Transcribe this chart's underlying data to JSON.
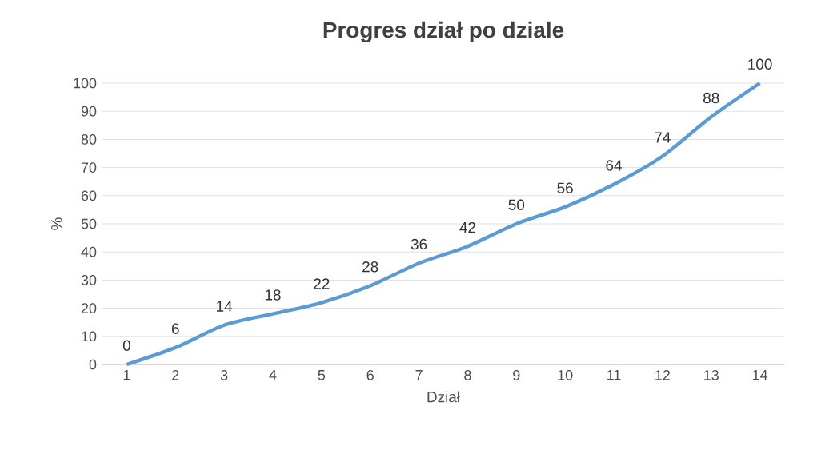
{
  "chart_data": {
    "type": "line",
    "title": "Progres dział po dziale",
    "xlabel": "Dział",
    "ylabel": "%",
    "categories": [
      "1",
      "2",
      "3",
      "4",
      "5",
      "6",
      "7",
      "8",
      "9",
      "10",
      "11",
      "12",
      "13",
      "14"
    ],
    "values": [
      0,
      6,
      14,
      18,
      22,
      28,
      36,
      42,
      50,
      56,
      64,
      74,
      88,
      100
    ],
    "color": "#5b9bd5",
    "ylim": [
      0,
      100
    ],
    "yticks": [
      0,
      10,
      20,
      30,
      40,
      50,
      60,
      70,
      80,
      90,
      100
    ],
    "grid": "y",
    "data_labels": true
  }
}
